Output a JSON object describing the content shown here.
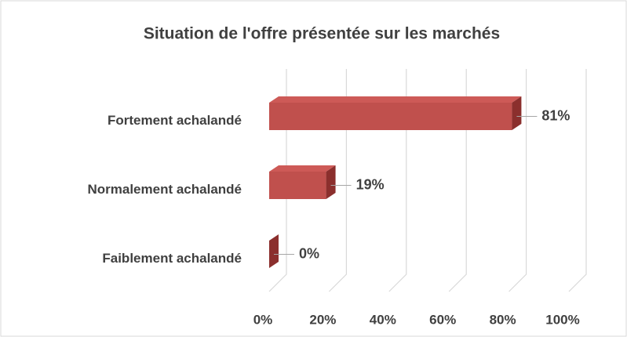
{
  "chart_data": {
    "type": "bar3d_horizontal",
    "title": "Situation de l'offre présentée sur les marchés",
    "categories": [
      "Fortement achalandé",
      "Normalement achalandé",
      "Faiblement achalandé"
    ],
    "values": [
      81,
      19,
      0
    ],
    "value_labels": [
      "81%",
      "19%",
      "0%"
    ],
    "color": "#c0504d",
    "xlim": [
      0,
      100
    ],
    "xticks": [
      {
        "value": 0,
        "label": "0%"
      },
      {
        "value": 20,
        "label": "20%"
      },
      {
        "value": 40,
        "label": "40%"
      },
      {
        "value": 60,
        "label": "60%"
      },
      {
        "value": 80,
        "label": "80%"
      },
      {
        "value": 100,
        "label": "100%"
      }
    ],
    "grid": true
  }
}
